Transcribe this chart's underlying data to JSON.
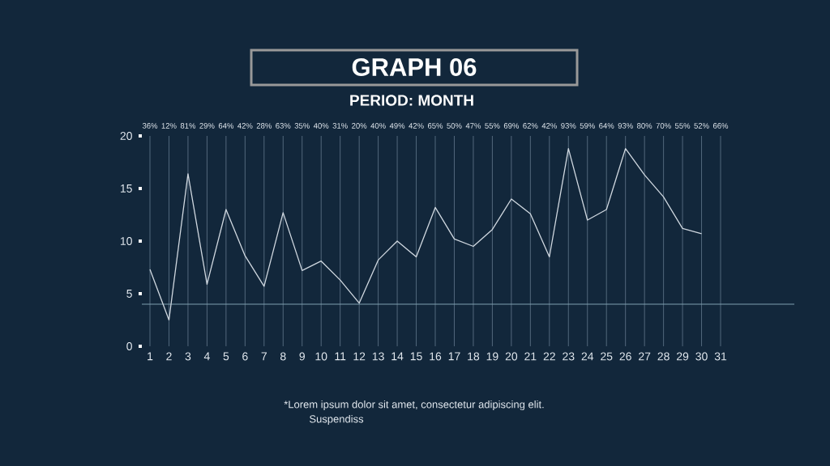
{
  "chart_data": {
    "type": "line",
    "title": "GRAPH 06",
    "subtitle": "PERIOD: MONTH",
    "categories": [
      "1",
      "2",
      "3",
      "4",
      "5",
      "6",
      "7",
      "8",
      "9",
      "10",
      "11",
      "12",
      "13",
      "14",
      "15",
      "16",
      "17",
      "18",
      "19",
      "20",
      "21",
      "22",
      "23",
      "24",
      "25",
      "26",
      "27",
      "28",
      "29",
      "30",
      "31"
    ],
    "values": [
      7.3,
      2.5,
      16.4,
      5.9,
      13.0,
      8.6,
      5.7,
      12.7,
      7.2,
      8.1,
      6.3,
      4.1,
      8.2,
      10.0,
      8.5,
      13.2,
      10.2,
      9.5,
      11.1,
      14.0,
      12.6,
      8.5,
      18.8,
      12.0,
      13.0,
      18.8,
      16.3,
      14.2,
      11.2,
      10.7,
      null
    ],
    "color": "#d0d8e0",
    "ylim": [
      0,
      20
    ],
    "yticks": [
      0,
      5,
      10,
      15,
      20
    ],
    "grid": "x",
    "marker": "none",
    "ref_lines": [
      {
        "axis": "y",
        "value": 4,
        "color": "#7fa0b0"
      }
    ],
    "annotations": [
      "36%",
      "12%",
      "81%",
      "29%",
      "64%",
      "42%",
      "28%",
      "63%",
      "35%",
      "40%",
      "31%",
      "20%",
      "40%",
      "49%",
      "42%",
      "65%",
      "50%",
      "47%",
      "55%",
      "69%",
      "62%",
      "42%",
      "93%",
      "59%",
      "64%",
      "93%",
      "80%",
      "70%",
      "55%",
      "52%",
      "66%",
      "*Lorem ipsum dolor sit amet, consectetur adipiscing elit.",
      "Suspendiss"
    ]
  }
}
